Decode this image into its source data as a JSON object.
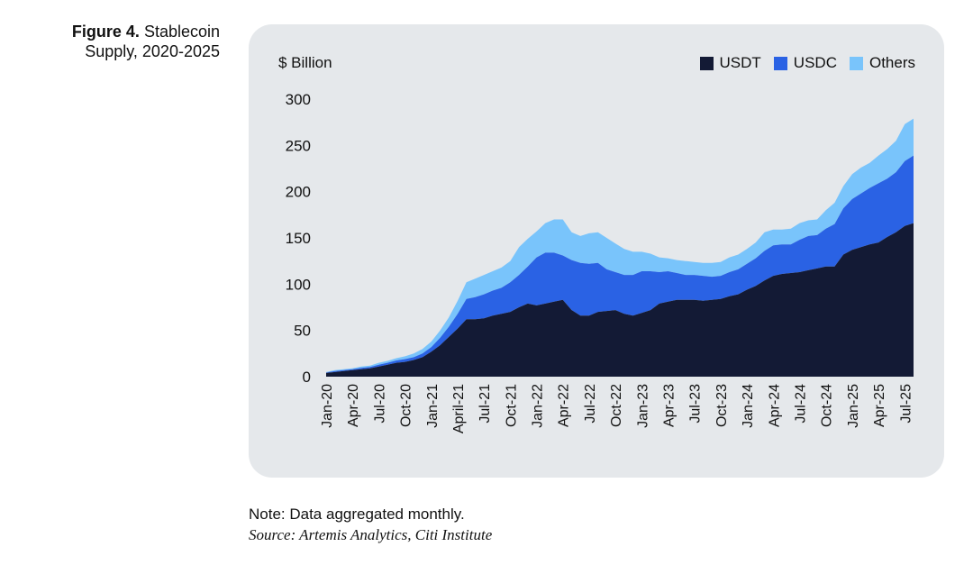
{
  "figure": {
    "number_label": "Figure 4.",
    "title": "Stablecoin Supply, 2020-2025"
  },
  "note": "Note: Data aggregated monthly.",
  "source": "Source: Artemis Analytics, Citi Institute",
  "colors": {
    "panel_bg": "#e5e8eb",
    "USDT": "#131a35",
    "USDC": "#2a62e4",
    "Others": "#79c4fb"
  },
  "chart_data": {
    "type": "area",
    "stacked": true,
    "ylabel": "$ Billion",
    "ylim": [
      0,
      300
    ],
    "yticks": [
      0,
      50,
      100,
      150,
      200,
      250,
      300
    ],
    "grid": false,
    "legend_position": "top-right",
    "x_labels": [
      "Jan-20",
      "Apr-20",
      "Jul-20",
      "Oct-20",
      "Jan-21",
      "April-21",
      "Jul-21",
      "Oct-21",
      "Jan-22",
      "Apr-22",
      "Jul-22",
      "Oct-22",
      "Jan-23",
      "Apr-23",
      "Jul-23",
      "Oct-23",
      "Jan-24",
      "Apr-24",
      "Jul-24",
      "Oct-24",
      "Jan-25",
      "Apr-25",
      "Jul-25"
    ],
    "x": [
      "2020-01",
      "2020-02",
      "2020-03",
      "2020-04",
      "2020-05",
      "2020-06",
      "2020-07",
      "2020-08",
      "2020-09",
      "2020-10",
      "2020-11",
      "2020-12",
      "2021-01",
      "2021-02",
      "2021-03",
      "2021-04",
      "2021-05",
      "2021-06",
      "2021-07",
      "2021-08",
      "2021-09",
      "2021-10",
      "2021-11",
      "2021-12",
      "2022-01",
      "2022-02",
      "2022-03",
      "2022-04",
      "2022-05",
      "2022-06",
      "2022-07",
      "2022-08",
      "2022-09",
      "2022-10",
      "2022-11",
      "2022-12",
      "2023-01",
      "2023-02",
      "2023-03",
      "2023-04",
      "2023-05",
      "2023-06",
      "2023-07",
      "2023-08",
      "2023-09",
      "2023-10",
      "2023-11",
      "2023-12",
      "2024-01",
      "2024-02",
      "2024-03",
      "2024-04",
      "2024-05",
      "2024-06",
      "2024-07",
      "2024-08",
      "2024-09",
      "2024-10",
      "2024-11",
      "2024-12",
      "2025-01",
      "2025-02",
      "2025-03",
      "2025-04",
      "2025-05",
      "2025-06",
      "2025-07",
      "2025-08"
    ],
    "series": [
      {
        "name": "USDT",
        "values": [
          4,
          5,
          6,
          7,
          8,
          9,
          11,
          13,
          15,
          16,
          18,
          21,
          27,
          34,
          43,
          52,
          62,
          62,
          63,
          66,
          68,
          70,
          75,
          79,
          77,
          79,
          81,
          83,
          72,
          66,
          66,
          70,
          71,
          72,
          68,
          66,
          69,
          72,
          79,
          81,
          83,
          83,
          83,
          82,
          83,
          84,
          87,
          89,
          94,
          98,
          104,
          109,
          111,
          112,
          113,
          115,
          117,
          119,
          119,
          132,
          137,
          140,
          143,
          145,
          151,
          156,
          163,
          166
        ],
        "cumulative": [
          4,
          5,
          6,
          7,
          8,
          9,
          11,
          13,
          15,
          16,
          18,
          21,
          27,
          34,
          43,
          52,
          62,
          62,
          63,
          66,
          68,
          70,
          75,
          79,
          77,
          79,
          81,
          83,
          72,
          66,
          66,
          70,
          71,
          72,
          68,
          66,
          69,
          72,
          79,
          81,
          83,
          83,
          83,
          82,
          83,
          84,
          87,
          89,
          94,
          98,
          104,
          109,
          111,
          112,
          113,
          115,
          117,
          119,
          119,
          132,
          137,
          140,
          143,
          145,
          151,
          156,
          163,
          166
        ]
      },
      {
        "name": "USDC",
        "values": [
          0.5,
          1,
          1,
          1,
          1.5,
          1.5,
          2,
          2,
          2.5,
          3,
          3,
          4,
          5,
          8,
          11,
          16,
          22,
          24,
          26,
          27,
          28,
          32,
          35,
          40,
          52,
          55,
          53,
          48,
          54,
          57,
          56,
          53,
          45,
          41,
          42,
          44,
          45,
          42,
          34,
          33,
          29,
          27,
          27,
          27,
          25,
          25,
          26,
          27,
          28,
          30,
          32,
          33,
          32,
          32,
          35,
          37,
          36,
          41,
          46,
          50,
          55,
          58,
          61,
          64,
          63,
          65,
          70,
          73
        ],
        "cumulative": [
          4.5,
          6,
          7,
          8,
          9.5,
          10.5,
          13,
          15,
          17.5,
          19,
          21,
          25,
          32,
          42,
          54,
          68,
          84,
          86,
          89,
          93,
          96,
          102,
          110,
          119,
          129,
          134,
          134,
          131,
          126,
          123,
          122,
          123,
          116,
          113,
          110,
          110,
          114,
          114,
          113,
          114,
          112,
          110,
          110,
          109,
          108,
          109,
          113,
          116,
          122,
          128,
          136,
          142,
          143,
          143,
          148,
          152,
          153,
          160,
          165,
          182,
          192,
          198,
          204,
          209,
          214,
          221,
          233,
          239
        ]
      },
      {
        "name": "Others",
        "values": [
          0.5,
          1,
          1,
          1,
          1.5,
          1.5,
          2,
          2,
          2.5,
          3,
          4,
          5,
          6,
          8,
          10,
          14,
          18,
          20,
          21,
          21,
          22,
          23,
          30,
          30,
          28,
          32,
          36,
          39,
          30,
          29,
          33,
          33,
          34,
          31,
          28,
          25,
          21,
          19,
          16,
          14,
          14,
          15,
          14,
          14,
          15,
          15,
          16,
          16,
          16,
          17,
          20,
          17,
          16,
          17,
          18,
          17,
          17,
          20,
          23,
          24,
          27,
          28,
          27,
          30,
          32,
          34,
          40,
          40
        ],
        "cumulative": [
          5,
          7,
          8,
          9,
          11,
          12,
          15,
          17,
          20,
          22,
          25,
          30,
          38,
          50,
          64,
          82,
          102,
          106,
          110,
          114,
          118,
          125,
          140,
          149,
          157,
          166,
          170,
          170,
          156,
          152,
          155,
          156,
          150,
          144,
          138,
          135,
          135,
          133,
          129,
          128,
          126,
          125,
          124,
          123,
          123,
          124,
          129,
          132,
          138,
          145,
          156,
          159,
          159,
          160,
          166,
          169,
          170,
          180,
          188,
          206,
          219,
          226,
          231,
          239,
          246,
          255,
          273,
          279
        ]
      }
    ]
  }
}
